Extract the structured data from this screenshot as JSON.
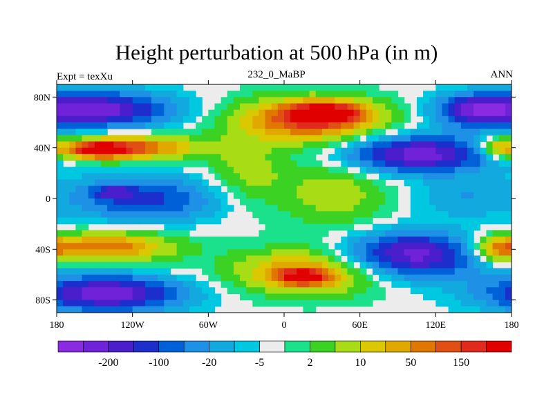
{
  "chart_data": {
    "type": "heatmap",
    "title": "Height perturbation at 500 hPa (in m)",
    "subtitle_left": "Expt = texXu",
    "subtitle_center": "232_0_MaBP",
    "subtitle_right": "ANN",
    "x_ticks": [
      "180",
      "120W",
      "60W",
      "0",
      "60E",
      "120E",
      "180"
    ],
    "x_tick_values": [
      -180,
      -120,
      -60,
      0,
      60,
      120,
      180
    ],
    "y_ticks": [
      "80N",
      "40N",
      "0",
      "40S",
      "80S"
    ],
    "y_tick_values": [
      80,
      40,
      0,
      -40,
      -80
    ],
    "xlim": [
      -180,
      180
    ],
    "ylim": [
      -90,
      90
    ],
    "colorbar": {
      "colors": [
        "#8a2be2",
        "#7022d8",
        "#4b1ecc",
        "#1c2fcc",
        "#0060d8",
        "#1e90e6",
        "#12a9de",
        "#00c8e0",
        "#ececec",
        "#1be08c",
        "#3cd223",
        "#a8dc14",
        "#dcc800",
        "#e0a800",
        "#e07800",
        "#e05014",
        "#e02a1e",
        "#e00000"
      ],
      "labels": [
        "-200",
        "-100",
        "-20",
        "-5",
        "2",
        "10",
        "50",
        "150"
      ],
      "label_boundary_index": [
        2,
        4,
        6,
        8,
        10,
        12,
        14,
        16
      ]
    },
    "field_blobs": [
      {
        "lon": -150,
        "lat": 70,
        "rlon": 60,
        "rlat": 14,
        "level": -2.5
      },
      {
        "lon": -120,
        "lat": 40,
        "rlon": 55,
        "rlat": 10,
        "level": 2
      },
      {
        "lon": -150,
        "lat": 38,
        "rlon": 25,
        "rlat": 7,
        "level": 1.8
      },
      {
        "lon": -110,
        "lat": 0,
        "rlon": 60,
        "rlat": 18,
        "level": -1.5
      },
      {
        "lon": -135,
        "lat": 5,
        "rlon": 15,
        "rlat": 5,
        "level": -1.2
      },
      {
        "lon": -140,
        "lat": -38,
        "rlon": 55,
        "rlat": 12,
        "level": 1.8
      },
      {
        "lon": -140,
        "lat": -75,
        "rlon": 60,
        "rlat": 14,
        "level": -2.5
      },
      {
        "lon": 20,
        "lat": 62,
        "rlon": 60,
        "rlat": 18,
        "level": 2.2
      },
      {
        "lon": 35,
        "lat": 68,
        "rlon": 30,
        "rlat": 8,
        "level": 1.6
      },
      {
        "lon": 105,
        "lat": 35,
        "rlon": 60,
        "rlat": 15,
        "level": -2.5
      },
      {
        "lon": 150,
        "lat": 70,
        "rlon": 30,
        "rlat": 12,
        "level": -1.8
      },
      {
        "lon": 170,
        "lat": 40,
        "rlon": 15,
        "rlat": 8,
        "level": 1.5
      },
      {
        "lon": 40,
        "lat": 5,
        "rlon": 45,
        "rlat": 30,
        "level": 0.9
      },
      {
        "lon": -30,
        "lat": 20,
        "rlon": 30,
        "rlat": 25,
        "level": 0.8
      },
      {
        "lon": 100,
        "lat": -45,
        "rlon": 55,
        "rlat": 18,
        "level": -2.5
      },
      {
        "lon": 20,
        "lat": -58,
        "rlon": 60,
        "rlat": 18,
        "level": 1.8
      },
      {
        "lon": 15,
        "lat": -62,
        "rlon": 20,
        "rlat": 6,
        "level": 1.6
      },
      {
        "lon": 170,
        "lat": -40,
        "rlon": 20,
        "rlat": 10,
        "level": 1.5
      },
      {
        "lon": 140,
        "lat": 0,
        "rlon": 40,
        "rlat": 15,
        "level": -0.6
      }
    ]
  }
}
